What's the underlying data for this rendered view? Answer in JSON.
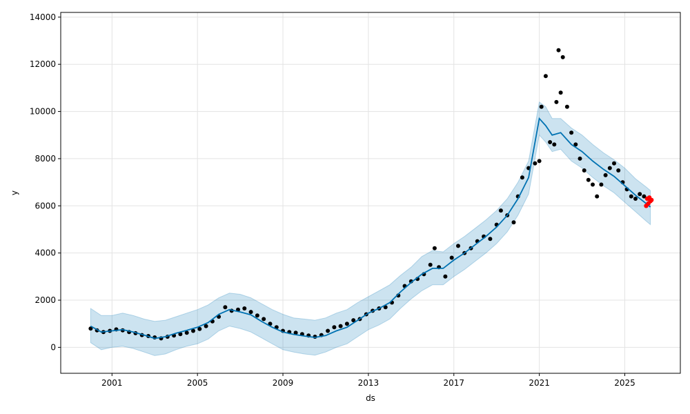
{
  "chart_data": {
    "type": "line",
    "xlabel": "ds",
    "ylabel": "y",
    "xlim": [
      1998.6,
      2027.6
    ],
    "ylim": [
      -1100,
      14200
    ],
    "grid": true,
    "x_ticks": [
      2001,
      2005,
      2009,
      2013,
      2017,
      2021,
      2025
    ],
    "x_tick_labels": [
      "2001",
      "2005",
      "2009",
      "2013",
      "2017",
      "2021",
      "2025"
    ],
    "y_ticks": [
      0,
      2000,
      4000,
      6000,
      8000,
      10000,
      12000,
      14000
    ],
    "y_tick_labels": [
      "0",
      "2000",
      "4000",
      "6000",
      "8000",
      "10000",
      "12000",
      "14000"
    ],
    "colors": {
      "forecast": "#0072B2",
      "interval": "#0072B2",
      "observed": "#000000",
      "recent": "#FF0000"
    },
    "series": [
      {
        "role": "forecast",
        "kind": "line",
        "x": [
          2000.0,
          2000.5,
          2001.0,
          2001.5,
          2002.0,
          2002.5,
          2003.0,
          2003.5,
          2004.0,
          2004.5,
          2005.0,
          2005.5,
          2006.0,
          2006.5,
          2007.0,
          2007.5,
          2008.0,
          2008.5,
          2009.0,
          2009.5,
          2010.0,
          2010.5,
          2011.0,
          2011.5,
          2012.0,
          2012.5,
          2013.0,
          2013.5,
          2014.0,
          2014.5,
          2015.0,
          2015.5,
          2016.0,
          2016.5,
          2017.0,
          2017.5,
          2018.0,
          2018.5,
          2019.0,
          2019.5,
          2020.0,
          2020.5,
          2021.0,
          2021.3,
          2021.6,
          2022.0,
          2022.5,
          2023.0,
          2023.5,
          2024.0,
          2024.5,
          2025.0,
          2025.5,
          2026.0,
          2026.2
        ],
        "y": [
          900,
          650,
          700,
          750,
          650,
          520,
          380,
          450,
          600,
          720,
          850,
          1050,
          1400,
          1600,
          1500,
          1380,
          1100,
          850,
          650,
          550,
          480,
          420,
          500,
          700,
          850,
          1150,
          1450,
          1650,
          1900,
          2350,
          2750,
          3100,
          3350,
          3350,
          3700,
          4000,
          4350,
          4700,
          5100,
          5600,
          6300,
          7200,
          9700,
          9400,
          9000,
          9100,
          8600,
          8300,
          7900,
          7550,
          7250,
          6850,
          6450,
          6100,
          5950
        ]
      },
      {
        "role": "interval",
        "kind": "area",
        "x": [
          2000.0,
          2000.5,
          2001.0,
          2001.5,
          2002.0,
          2002.5,
          2003.0,
          2003.5,
          2004.0,
          2004.5,
          2005.0,
          2005.5,
          2006.0,
          2006.5,
          2007.0,
          2007.5,
          2008.0,
          2008.5,
          2009.0,
          2009.5,
          2010.0,
          2010.5,
          2011.0,
          2011.5,
          2012.0,
          2012.5,
          2013.0,
          2013.5,
          2014.0,
          2014.5,
          2015.0,
          2015.5,
          2016.0,
          2016.5,
          2017.0,
          2017.5,
          2018.0,
          2018.5,
          2019.0,
          2019.5,
          2020.0,
          2020.5,
          2021.0,
          2021.3,
          2021.6,
          2022.0,
          2022.5,
          2023.0,
          2023.5,
          2024.0,
          2024.5,
          2025.0,
          2025.5,
          2026.0,
          2026.2
        ],
        "upper": [
          1650,
          1350,
          1350,
          1450,
          1350,
          1200,
          1100,
          1150,
          1300,
          1450,
          1600,
          1800,
          2100,
          2300,
          2250,
          2100,
          1850,
          1600,
          1400,
          1250,
          1200,
          1150,
          1250,
          1450,
          1600,
          1900,
          2150,
          2400,
          2650,
          3050,
          3400,
          3850,
          4100,
          4050,
          4400,
          4700,
          5050,
          5400,
          5800,
          6300,
          7000,
          7900,
          10400,
          10200,
          9700,
          9700,
          9300,
          9000,
          8600,
          8250,
          7950,
          7600,
          7150,
          6800,
          6650
        ],
        "lower": [
          200,
          -100,
          0,
          50,
          -50,
          -200,
          -350,
          -280,
          -100,
          50,
          150,
          350,
          700,
          900,
          800,
          650,
          400,
          150,
          -100,
          -200,
          -280,
          -330,
          -200,
          0,
          150,
          450,
          750,
          950,
          1200,
          1650,
          2050,
          2400,
          2650,
          2650,
          3000,
          3300,
          3650,
          4000,
          4400,
          4900,
          5600,
          6500,
          9000,
          8700,
          8300,
          8400,
          7900,
          7600,
          7200,
          6850,
          6550,
          6150,
          5750,
          5350,
          5200
        ]
      },
      {
        "role": "observed",
        "kind": "scatter",
        "x": [
          2000.0,
          2000.3,
          2000.6,
          2000.9,
          2001.2,
          2001.5,
          2001.8,
          2002.1,
          2002.4,
          2002.7,
          2003.0,
          2003.3,
          2003.6,
          2003.9,
          2004.2,
          2004.5,
          2004.8,
          2005.1,
          2005.4,
          2005.7,
          2006.0,
          2006.3,
          2006.6,
          2006.9,
          2007.2,
          2007.5,
          2007.8,
          2008.1,
          2008.4,
          2008.7,
          2009.0,
          2009.3,
          2009.6,
          2009.9,
          2010.2,
          2010.5,
          2010.8,
          2011.1,
          2011.4,
          2011.7,
          2012.0,
          2012.3,
          2012.6,
          2012.9,
          2013.2,
          2013.5,
          2013.8,
          2014.1,
          2014.4,
          2014.7,
          2015.0,
          2015.3,
          2015.6,
          2015.9,
          2016.1,
          2016.3,
          2016.6,
          2016.9,
          2017.2,
          2017.5,
          2017.8,
          2018.1,
          2018.4,
          2018.7,
          2019.0,
          2019.2,
          2019.5,
          2019.8,
          2020.0,
          2020.2,
          2020.5,
          2020.8,
          2021.0,
          2021.1,
          2021.3,
          2021.5,
          2021.7,
          2021.8,
          2021.9,
          2022.0,
          2022.1,
          2022.3,
          2022.5,
          2022.7,
          2022.9,
          2023.1,
          2023.3,
          2023.5,
          2023.7,
          2023.9,
          2024.1,
          2024.3,
          2024.5,
          2024.7,
          2024.9,
          2025.1,
          2025.3,
          2025.5,
          2025.7,
          2025.9
        ],
        "y": [
          800,
          720,
          650,
          700,
          760,
          720,
          650,
          600,
          520,
          480,
          420,
          380,
          450,
          500,
          560,
          620,
          700,
          780,
          900,
          1100,
          1300,
          1700,
          1550,
          1600,
          1650,
          1500,
          1350,
          1200,
          1000,
          850,
          700,
          650,
          620,
          560,
          500,
          450,
          520,
          700,
          850,
          900,
          1000,
          1150,
          1200,
          1400,
          1550,
          1650,
          1700,
          1900,
          2200,
          2600,
          2800,
          2900,
          3100,
          3500,
          4200,
          3400,
          3000,
          3800,
          4300,
          4000,
          4200,
          4500,
          4700,
          4600,
          5200,
          5800,
          5600,
          5300,
          6400,
          7200,
          7600,
          7800,
          7900,
          10200,
          11500,
          8700,
          8600,
          10400,
          12600,
          10800,
          12300,
          10200,
          9100,
          8600,
          8000,
          7500,
          7100,
          6900,
          6400,
          6900,
          7300,
          7600,
          7800,
          7500,
          7000,
          6700,
          6400,
          6300,
          6500,
          6400
        ]
      },
      {
        "role": "recent",
        "kind": "scatter",
        "x": [
          2026.0,
          2026.05,
          2026.1,
          2026.15,
          2026.2,
          2026.25
        ],
        "y": [
          6000,
          6300,
          6100,
          6350,
          6200,
          6250
        ]
      }
    ]
  }
}
